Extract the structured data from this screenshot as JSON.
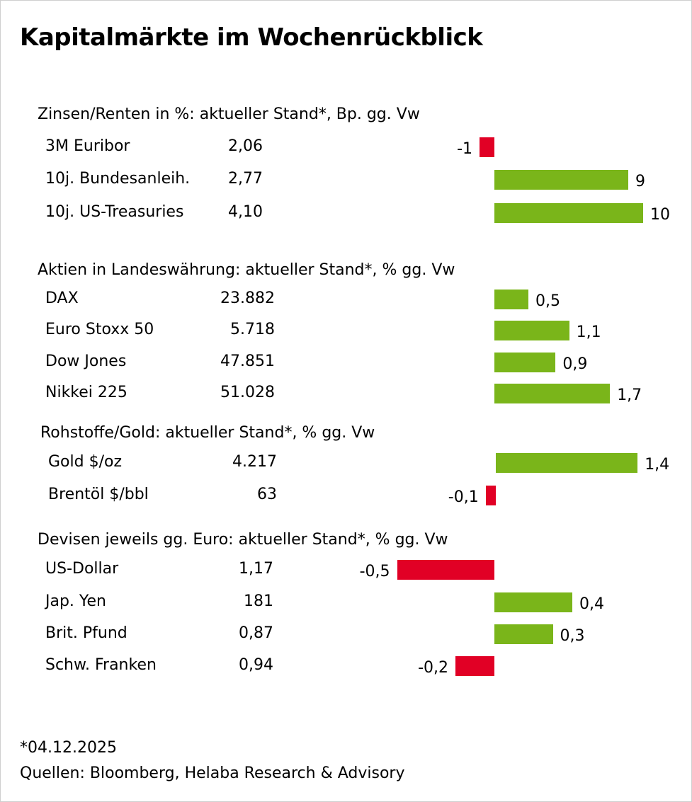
{
  "title": "Kapitalmärkte im Wochenrückblick",
  "colors": {
    "positive": "#7ab51a",
    "negative": "#e10025"
  },
  "chart_data": {
    "type": "bar",
    "orientation": "horizontal",
    "title": "Kapitalmärkte im Wochenrückblick",
    "sections": [
      {
        "header": "Zinsen/Renten in %: aktueller Stand*, Bp. gg. Vw",
        "rows": [
          {
            "label": "3M Euribor",
            "level": "2,06",
            "change": -1,
            "change_label": "-1"
          },
          {
            "label": "10j. Bundesanleih.",
            "level": "2,77",
            "change": 9,
            "change_label": "9"
          },
          {
            "label": "10j. US-Treasuries",
            "level": "4,10",
            "change": 10,
            "change_label": "10"
          }
        ]
      },
      {
        "header": "Aktien in Landeswährung: aktueller Stand*, % gg. Vw",
        "rows": [
          {
            "label": "DAX",
            "level": "23.882",
            "change": 0.5,
            "change_label": "0,5"
          },
          {
            "label": "Euro Stoxx 50",
            "level": "5.718",
            "change": 1.1,
            "change_label": "1,1"
          },
          {
            "label": "Dow Jones",
            "level": "47.851",
            "change": 0.9,
            "change_label": "0,9"
          },
          {
            "label": "Nikkei 225",
            "level": "51.028",
            "change": 1.7,
            "change_label": "1,7"
          }
        ]
      },
      {
        "header": "Rohstoffe/Gold: aktueller Stand*, % gg. Vw",
        "rows": [
          {
            "label": "Gold $/oz",
            "level": "4.217",
            "change": 1.4,
            "change_label": "1,4"
          },
          {
            "label": "Brentöl $/bbl",
            "level": "63",
            "change": -0.1,
            "change_label": "-0,1"
          }
        ]
      },
      {
        "header": "Devisen jeweils gg. Euro: aktueller Stand*, % gg. Vw",
        "rows": [
          {
            "label": "US-Dollar",
            "level": "1,17",
            "change": -0.5,
            "change_label": "-0,5"
          },
          {
            "label": "Jap. Yen",
            "level": "181",
            "change": 0.4,
            "change_label": "0,4"
          },
          {
            "label": "Brit. Pfund",
            "level": "0,87",
            "change": 0.3,
            "change_label": "0,3"
          },
          {
            "label": "Schw. Franken",
            "level": "0,94",
            "change": -0.2,
            "change_label": "-0,2"
          }
        ]
      }
    ]
  },
  "footnote": "*04.12.2025",
  "source": "Quellen: Bloomberg, Helaba Research & Advisory"
}
